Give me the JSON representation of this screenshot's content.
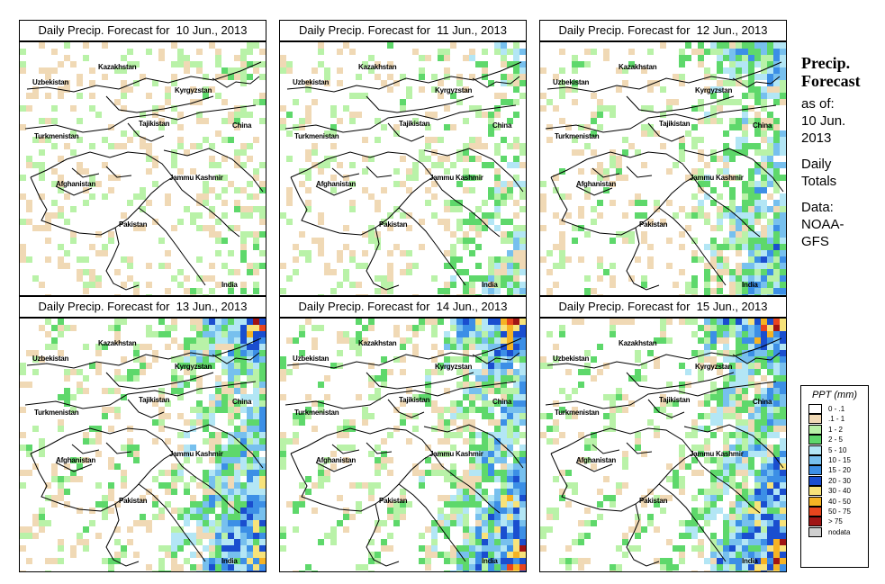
{
  "panels": [
    {
      "title": "Daily Precip. Forecast for  10 Jun., 2013",
      "intensity": 0.1
    },
    {
      "title": "Daily Precip. Forecast for  11 Jun., 2013",
      "intensity": 0.3
    },
    {
      "title": "Daily Precip. Forecast for  12 Jun., 2013",
      "intensity": 0.55
    },
    {
      "title": "Daily Precip. Forecast for  13 Jun., 2013",
      "intensity": 0.75
    },
    {
      "title": "Daily Precip. Forecast for  14 Jun., 2013",
      "intensity": 0.8
    },
    {
      "title": "Daily Precip. Forecast for  15 Jun., 2013",
      "intensity": 0.85
    }
  ],
  "map_labels": {
    "uzbekistan": "Uzbekistan",
    "kazakhstan": "Kazakhstan",
    "kyrgyzstan": "Kyrgyzstan",
    "tajikistan": "Tajikistan",
    "turkmenistan": "Turkmenistan",
    "china": "China",
    "afghanistan": "Afghanistan",
    "jammu_kashmir": "Jammu Kashmir",
    "pakistan": "Pakistan",
    "india": "India"
  },
  "sidebar": {
    "heading_line1": "Precip.",
    "heading_line2": "Forecast",
    "asof_line1": "as of:",
    "asof_line2": "10 Jun.",
    "asof_line3": "2013",
    "totals_line1": "Daily",
    "totals_line2": "Totals",
    "data_line1": "Data:",
    "data_line2": "NOAA-",
    "data_line3": "GFS"
  },
  "legend": {
    "title": "PPT (mm)",
    "items": [
      {
        "label": "0 - .1",
        "color": "#ffffff"
      },
      {
        "label": ".1 - 1",
        "color": "#f0d9b5"
      },
      {
        "label": "1 - 2",
        "color": "#b9f2a8"
      },
      {
        "label": "2 - 5",
        "color": "#5ed86b"
      },
      {
        "label": "5 - 10",
        "color": "#b3e6f5"
      },
      {
        "label": "10 - 15",
        "color": "#77c0ee"
      },
      {
        "label": "15 - 20",
        "color": "#3c8fe6"
      },
      {
        "label": "20 - 30",
        "color": "#1a4ecf"
      },
      {
        "label": "30 - 40",
        "color": "#f7e37a"
      },
      {
        "label": "40 - 50",
        "color": "#f5b324"
      },
      {
        "label": "50 - 75",
        "color": "#e8451e"
      },
      {
        "label": "> 75",
        "color": "#a01414"
      },
      {
        "label": "nodata",
        "color": "#cfcfcf"
      }
    ]
  }
}
